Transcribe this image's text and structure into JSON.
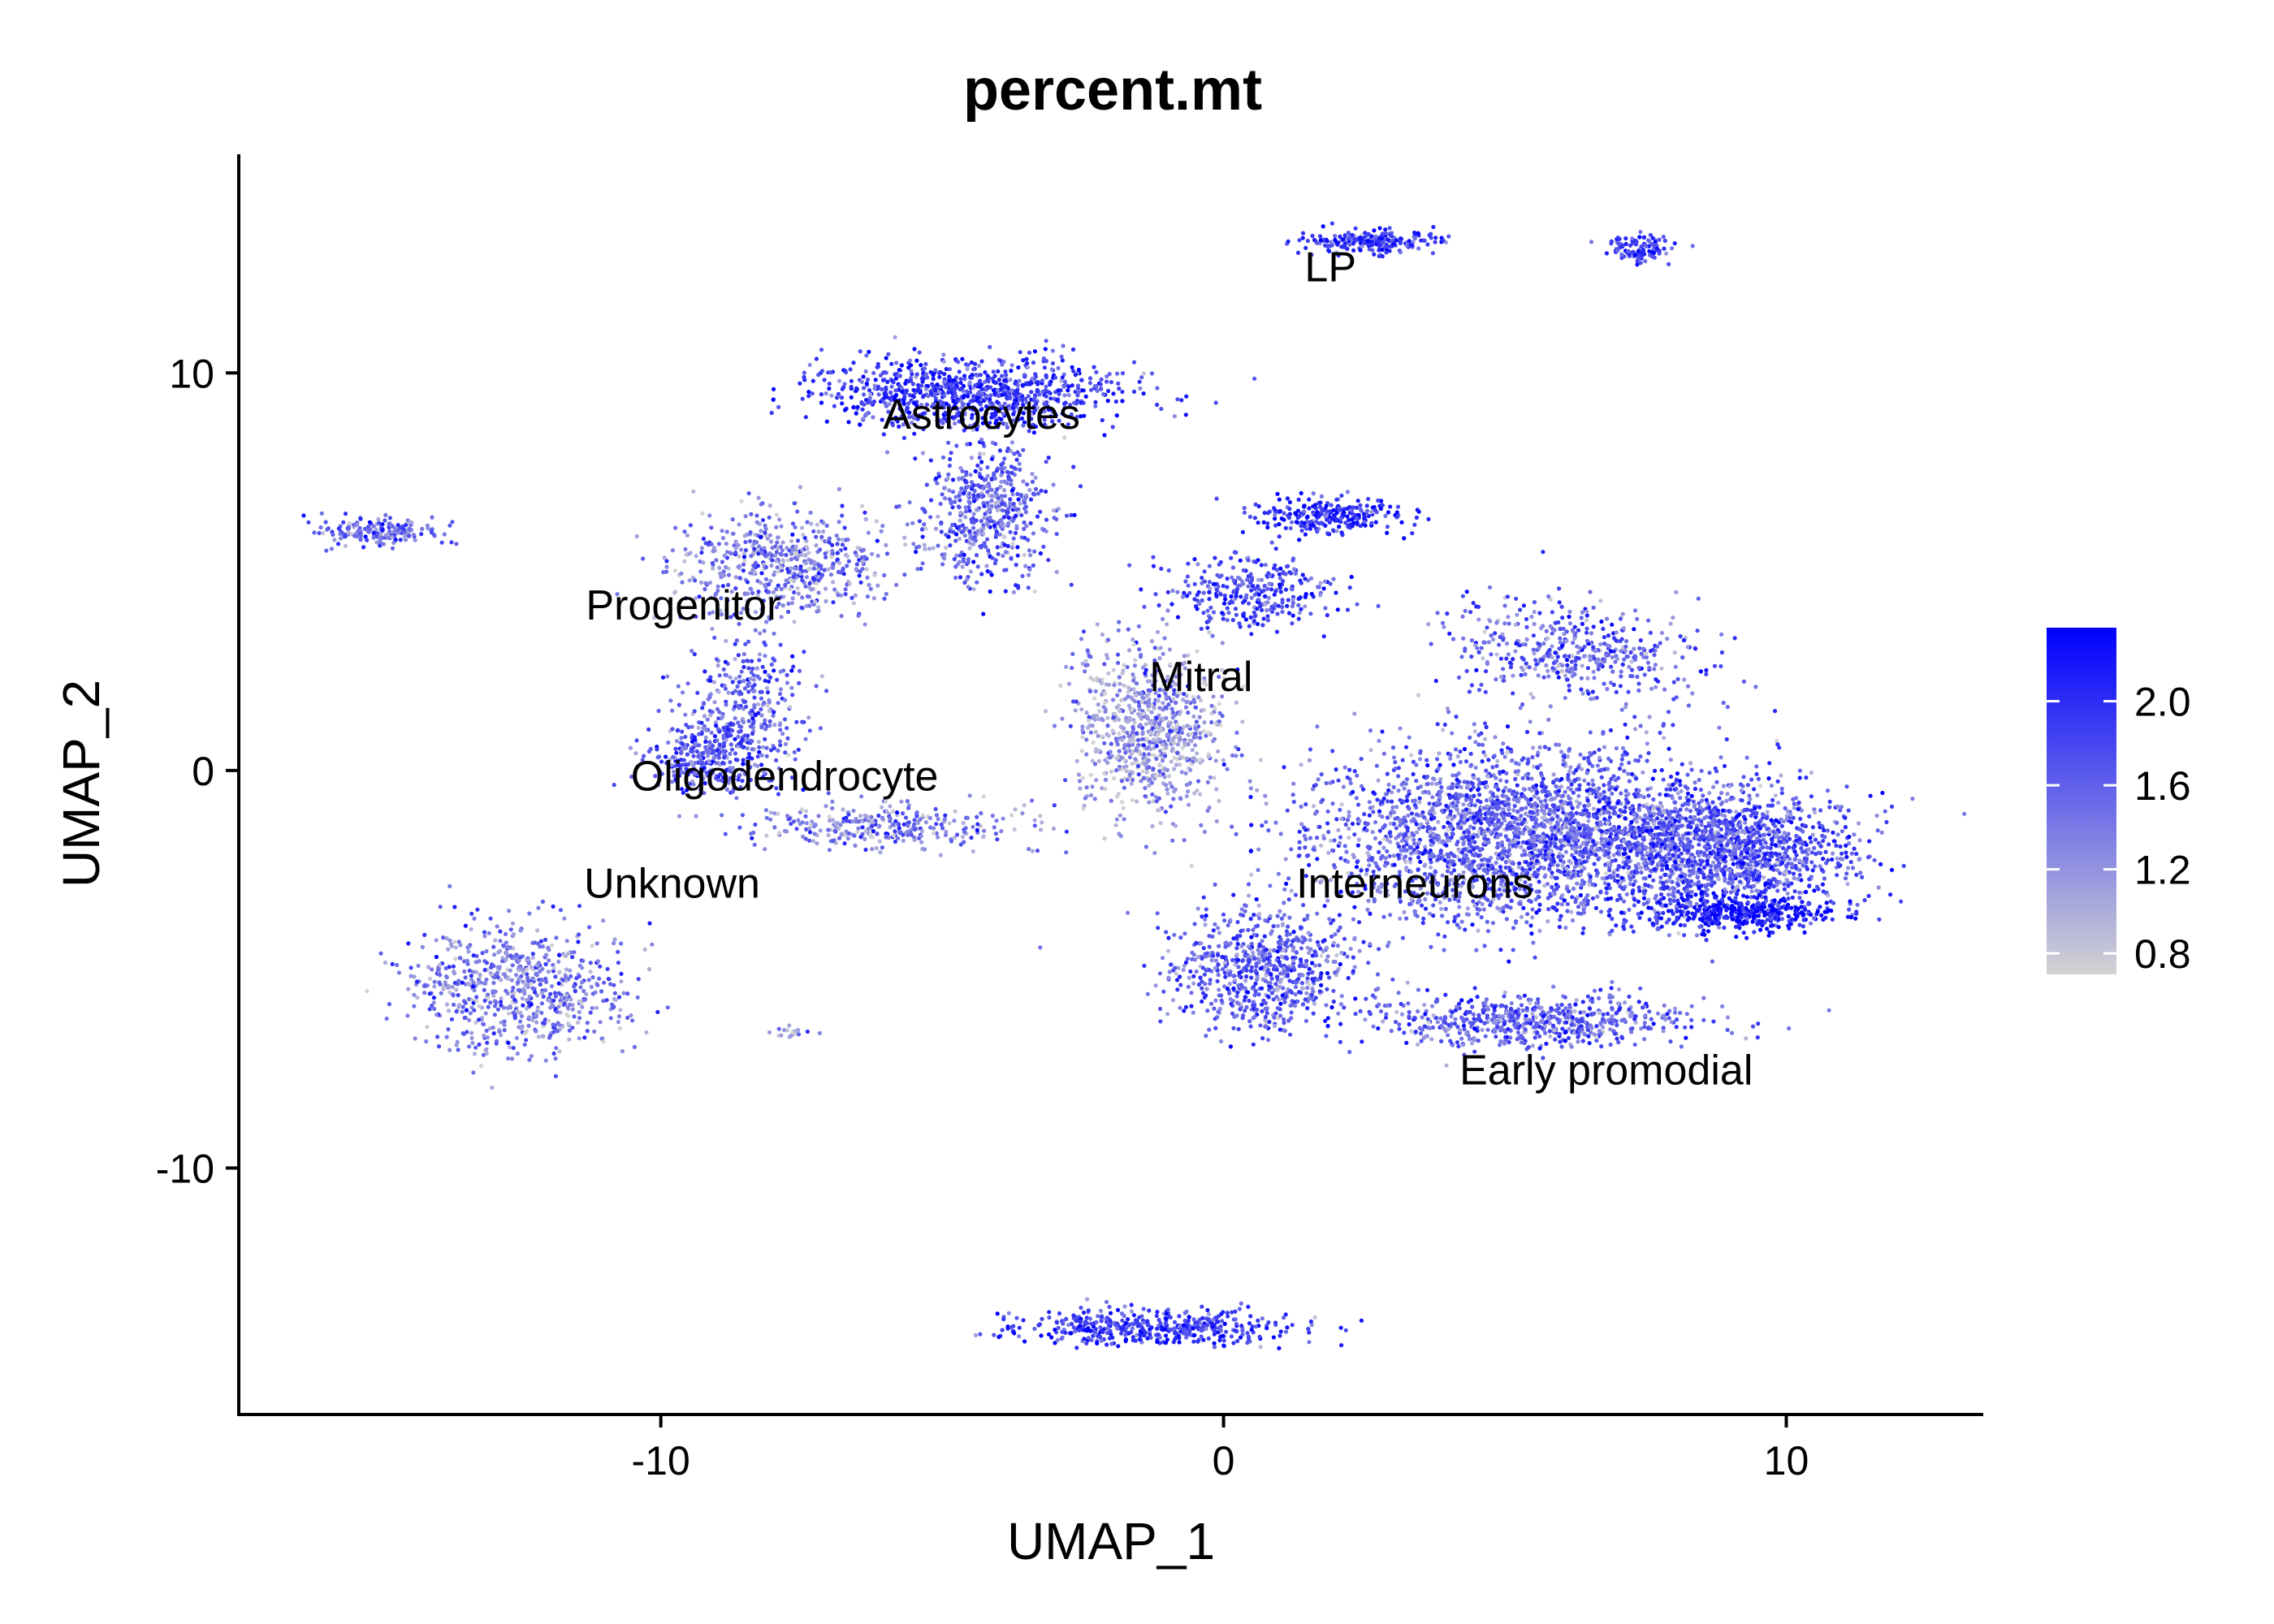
{
  "chart_data": {
    "type": "scatter",
    "title": "percent.mt",
    "xlabel": "UMAP_1",
    "ylabel": "UMAP_2",
    "xlim": [
      -17.5,
      13.5
    ],
    "ylim": [
      -16.2,
      15.5
    ],
    "xticks": [
      -10,
      0,
      10
    ],
    "xtick_labels": [
      "-10",
      "0",
      "10"
    ],
    "yticks": [
      -10,
      0,
      10
    ],
    "ytick_labels": [
      "-10",
      "0",
      "10"
    ],
    "grid": false,
    "legend": {
      "position": "right",
      "type": "colorbar",
      "min": 0.7,
      "max": 2.35,
      "ticks": [
        0.8,
        1.2,
        1.6,
        2.0
      ],
      "tick_labels": [
        "0.8",
        "1.2",
        "1.6",
        "2.0"
      ],
      "low_color": "#d3d3d3",
      "high_color": "#0000ff"
    },
    "cluster_labels": [
      {
        "text": "LP",
        "x": 1.9,
        "y": 12.3
      },
      {
        "text": "Astrocytes",
        "x": -4.3,
        "y": 8.6
      },
      {
        "text": "Progenitor",
        "x": -9.6,
        "y": 3.8
      },
      {
        "text": "Mitral",
        "x": -0.4,
        "y": 2.0
      },
      {
        "text": "Oligodendrocyte",
        "x": -7.8,
        "y": -0.5
      },
      {
        "text": "Unknown",
        "x": -9.8,
        "y": -3.2
      },
      {
        "text": "Interneurons",
        "x": 3.4,
        "y": -3.2
      },
      {
        "text": "Early promodial",
        "x": 6.8,
        "y": -7.9
      }
    ],
    "clusters": [
      {
        "cx": 2.7,
        "cy": 13.3,
        "sx": 1.1,
        "sy": 0.25,
        "n": 220,
        "mean": 1.9
      },
      {
        "cx": 7.4,
        "cy": 13.1,
        "sx": 0.5,
        "sy": 0.3,
        "n": 110,
        "mean": 1.8
      },
      {
        "cx": -4.5,
        "cy": 9.5,
        "sx": 2.4,
        "sy": 0.8,
        "n": 900,
        "mean": 1.9
      },
      {
        "cx": -4.2,
        "cy": 6.5,
        "sx": 1.0,
        "sy": 1.6,
        "n": 500,
        "mean": 1.6
      },
      {
        "cx": -7.8,
        "cy": 5.2,
        "sx": 1.8,
        "sy": 1.2,
        "n": 550,
        "mean": 1.4
      },
      {
        "cx": -8.5,
        "cy": 1.5,
        "sx": 1.0,
        "sy": 1.8,
        "n": 350,
        "mean": 1.6
      },
      {
        "cx": -9.3,
        "cy": 0.3,
        "sx": 0.9,
        "sy": 0.7,
        "n": 250,
        "mean": 1.7
      },
      {
        "cx": -6.0,
        "cy": -1.4,
        "sx": 2.4,
        "sy": 0.5,
        "n": 300,
        "mean": 1.4
      },
      {
        "cx": -15.0,
        "cy": 6.0,
        "sx": 0.9,
        "sy": 0.3,
        "n": 180,
        "mean": 1.5
      },
      {
        "cx": -12.5,
        "cy": -5.5,
        "sx": 1.7,
        "sy": 1.5,
        "n": 700,
        "mean": 1.4
      },
      {
        "cx": -1.3,
        "cy": 1.0,
        "sx": 1.2,
        "sy": 2.0,
        "n": 800,
        "mean": 1.2
      },
      {
        "cx": 1.8,
        "cy": 6.4,
        "sx": 1.2,
        "sy": 0.4,
        "n": 250,
        "mean": 2.0
      },
      {
        "cx": 0.5,
        "cy": 4.5,
        "sx": 1.4,
        "sy": 0.8,
        "n": 300,
        "mean": 1.8
      },
      {
        "cx": 5.3,
        "cy": -1.6,
        "sx": 3.3,
        "sy": 2.0,
        "n": 2600,
        "mean": 1.6
      },
      {
        "cx": 9.0,
        "cy": -2.0,
        "sx": 2.0,
        "sy": 1.3,
        "n": 1300,
        "mean": 1.7
      },
      {
        "cx": 9.2,
        "cy": -3.6,
        "sx": 1.5,
        "sy": 0.4,
        "n": 400,
        "mean": 2.2
      },
      {
        "cx": 6.3,
        "cy": 3.0,
        "sx": 2.0,
        "sy": 1.2,
        "n": 450,
        "mean": 1.6
      },
      {
        "cx": 0.7,
        "cy": -5.0,
        "sx": 1.5,
        "sy": 1.3,
        "n": 700,
        "mean": 1.6
      },
      {
        "cx": 5.5,
        "cy": -6.3,
        "sx": 2.5,
        "sy": 0.6,
        "n": 600,
        "mean": 1.6
      },
      {
        "cx": -1.2,
        "cy": -14.0,
        "sx": 2.2,
        "sy": 0.4,
        "n": 450,
        "mean": 1.9
      },
      {
        "cx": -7.6,
        "cy": -6.6,
        "sx": 0.3,
        "sy": 0.12,
        "n": 20,
        "mean": 1.2
      }
    ]
  }
}
